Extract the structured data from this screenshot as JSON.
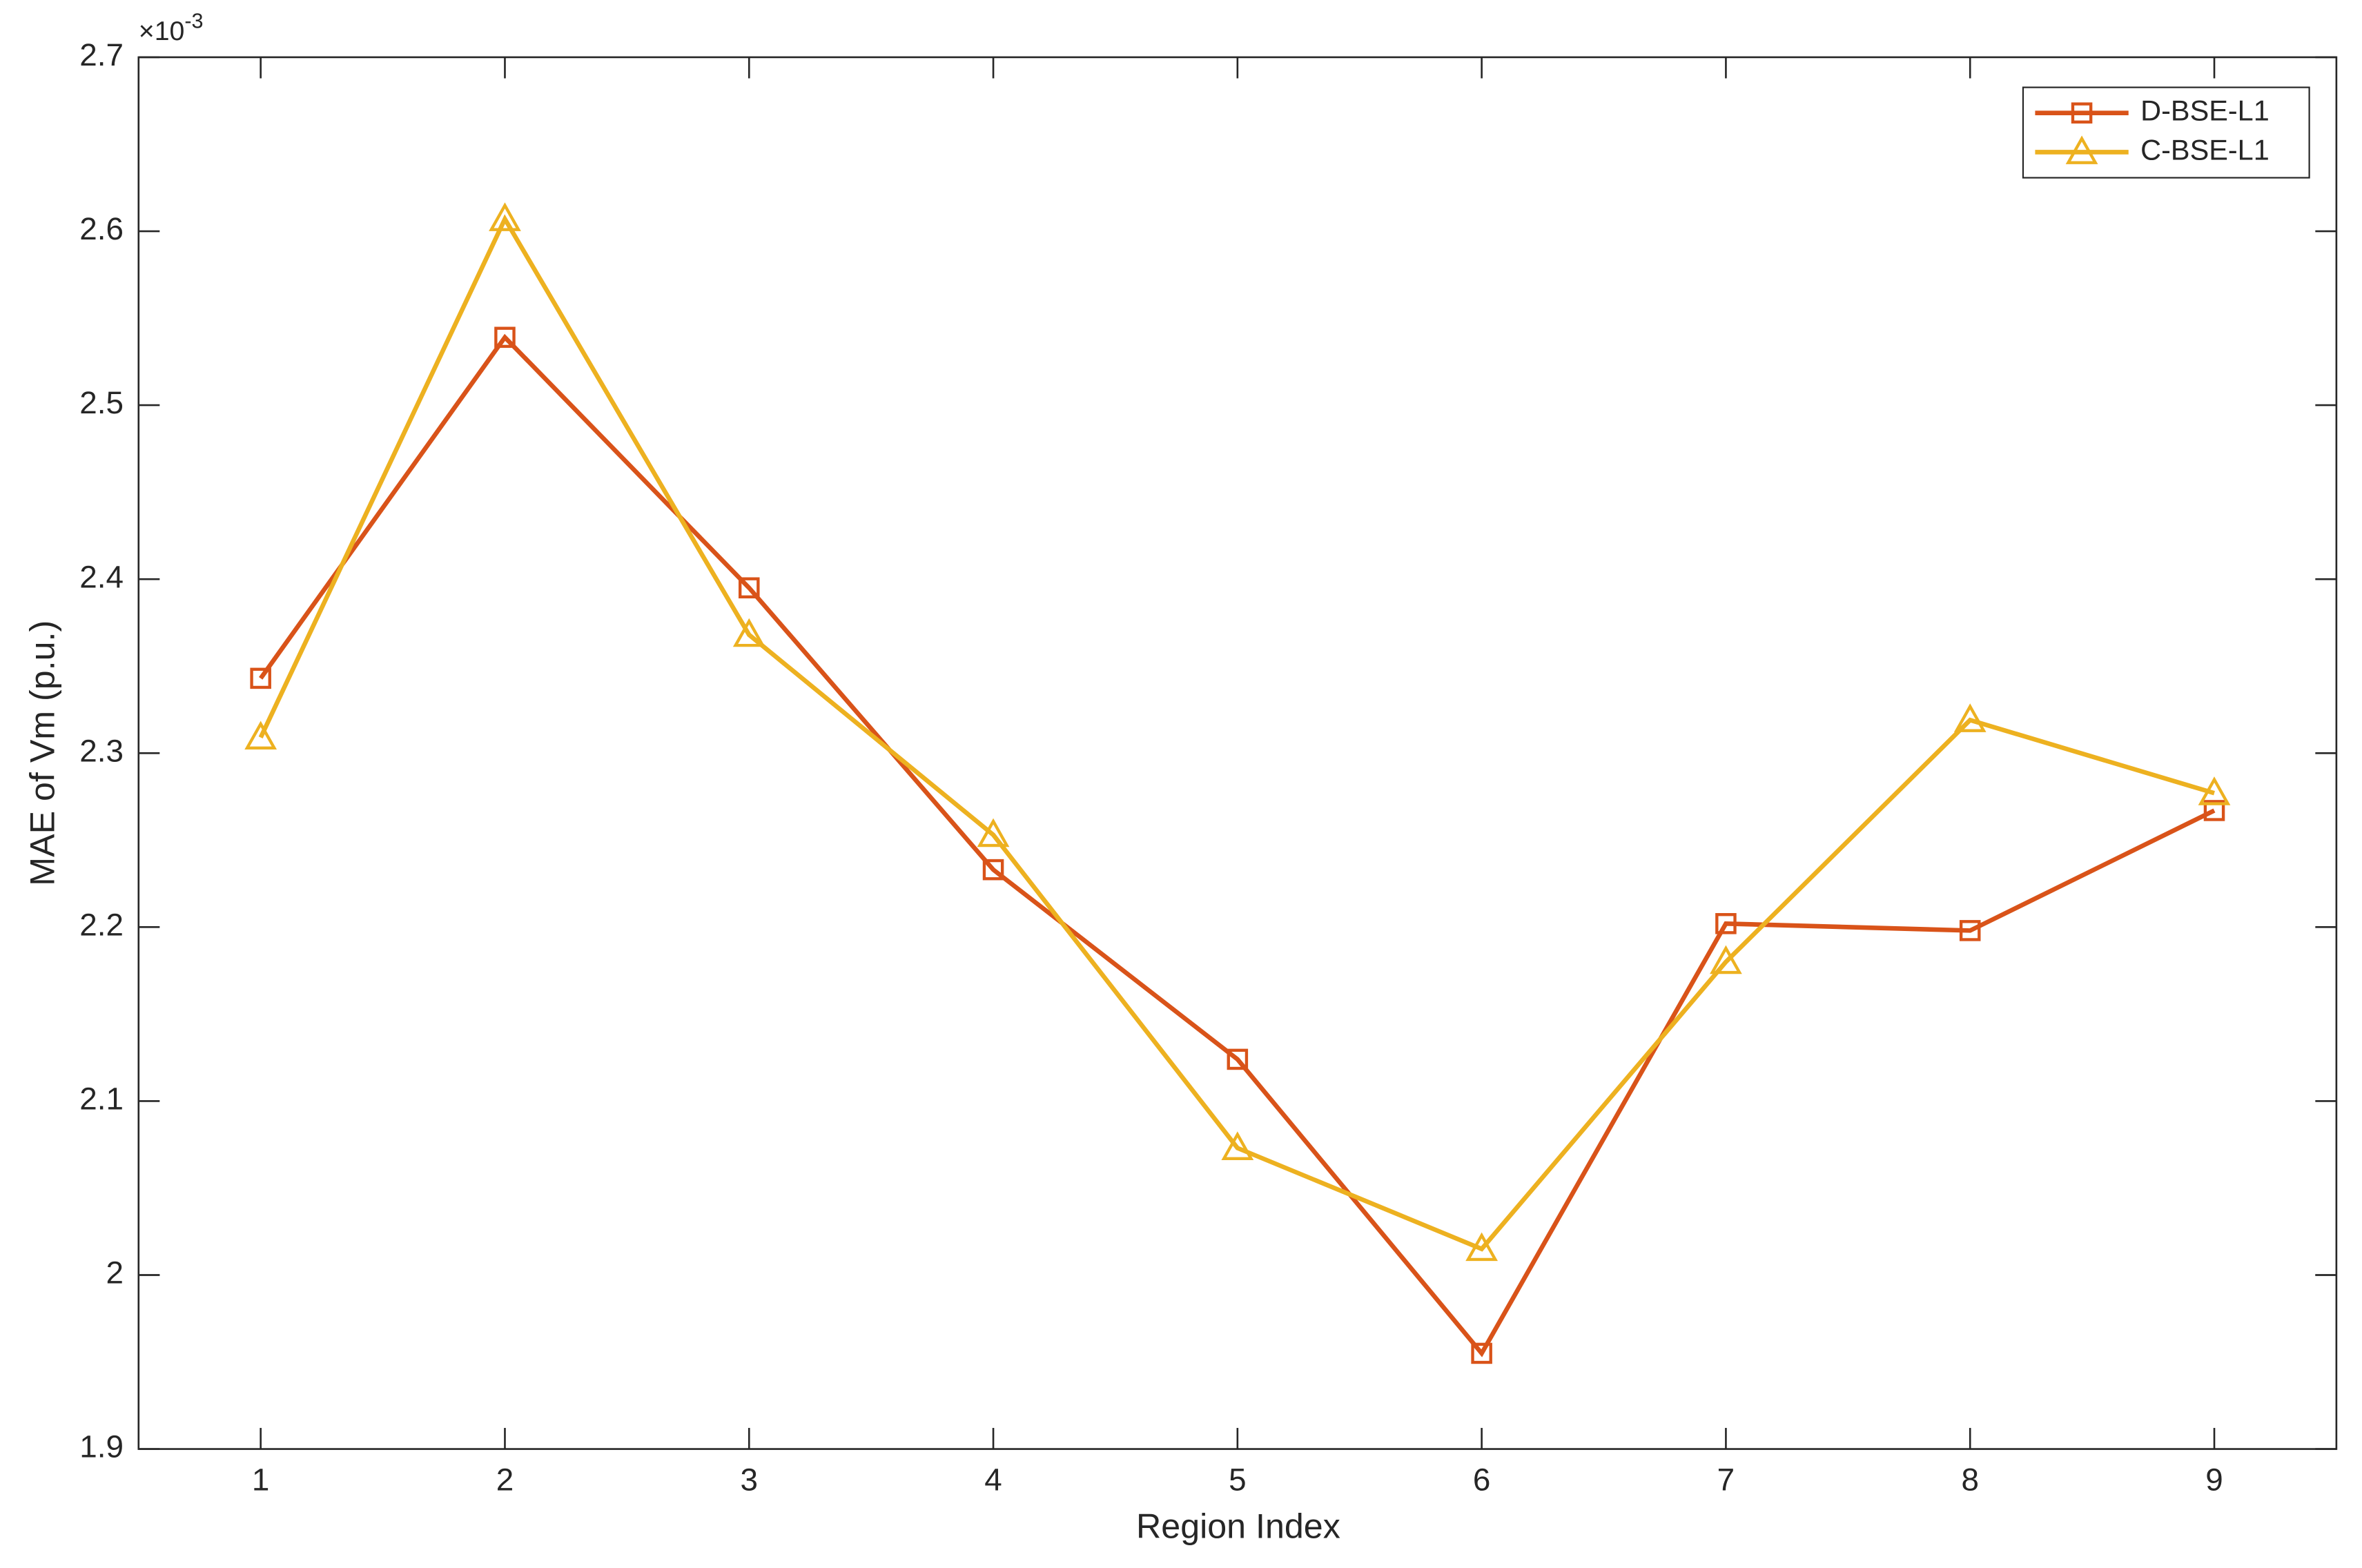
{
  "chart_data": {
    "type": "line",
    "x_label": "Region Index",
    "y_label": "MAE of Vm (p.u.)",
    "y_multiplier": {
      "base": "×10",
      "exponent": "-3"
    },
    "x": [
      1,
      2,
      3,
      4,
      5,
      6,
      7,
      8,
      9
    ],
    "series": [
      {
        "name": "D-BSE-L1",
        "color": "#D95319",
        "marker": "square",
        "values": [
          2.343,
          2.539,
          2.395,
          2.233,
          2.124,
          1.955,
          2.202,
          2.198,
          2.267
        ]
      },
      {
        "name": "C-BSE-L1",
        "color": "#EDB120",
        "marker": "triangle",
        "values": [
          2.309,
          2.607,
          2.368,
          2.253,
          2.073,
          2.015,
          2.18,
          2.319,
          2.277
        ]
      }
    ],
    "xlim": [
      0.5,
      9.5
    ],
    "xticks": [
      1,
      2,
      3,
      4,
      5,
      6,
      7,
      8,
      9
    ],
    "ylim": [
      1.9,
      2.7
    ],
    "yticks": [
      1.9,
      2.0,
      {
        "value": 2.0,
        "label": "2"
      },
      2.1,
      2.2,
      2.3,
      2.4,
      2.5,
      2.6,
      2.7
    ],
    "legend": "northeast",
    "grid": false
  }
}
